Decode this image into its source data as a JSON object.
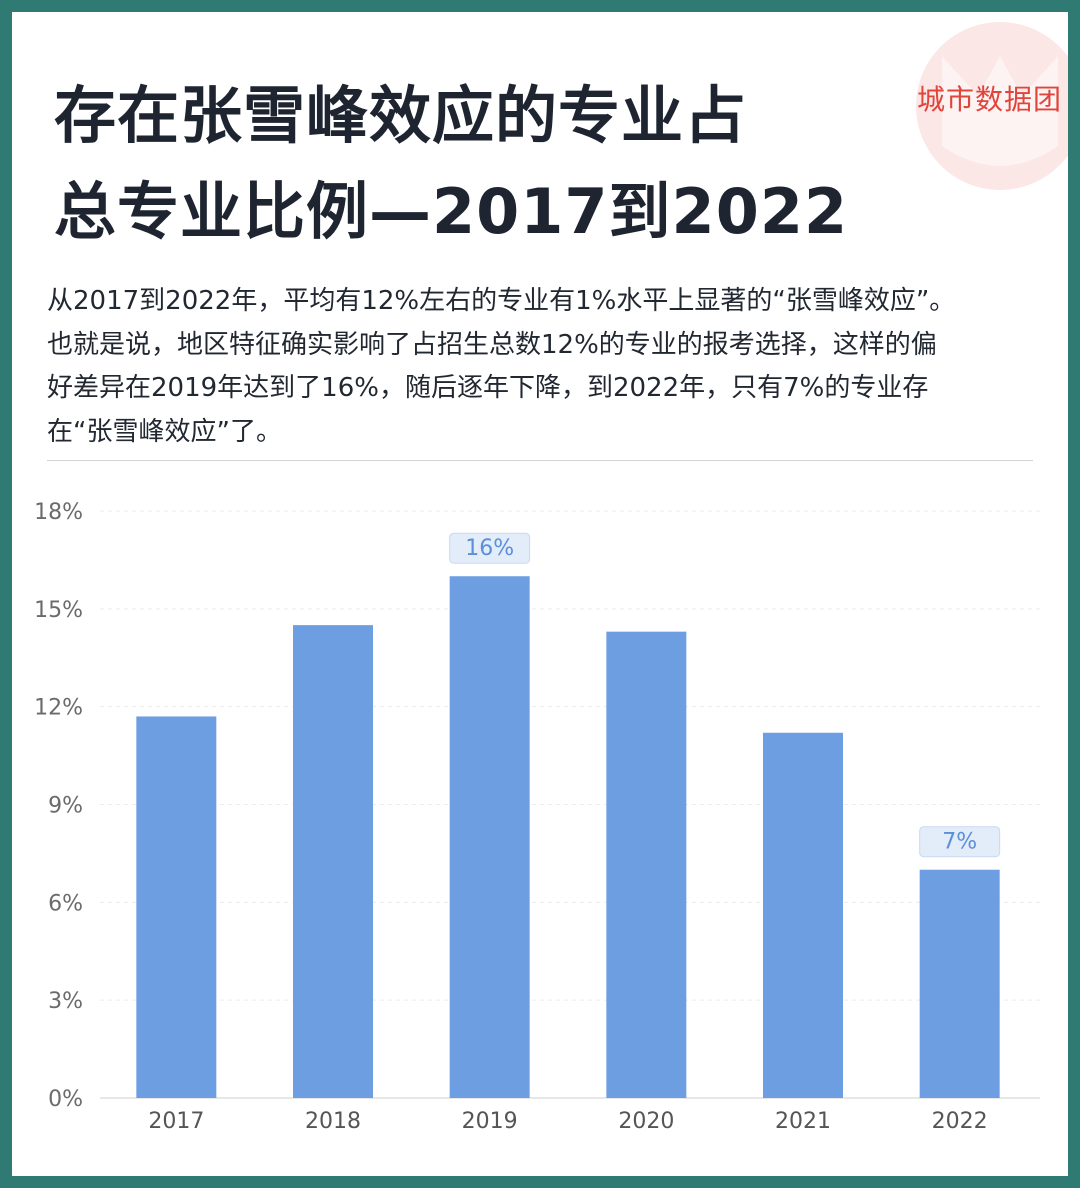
{
  "brand": {
    "name": "城市数据团"
  },
  "title_lines": [
    "存在张雪峰效应的专业占",
    "总专业比例—2017到2022"
  ],
  "description_lines": [
    "从2017到2022年，平均有12%左右的专业有1%水平上显著的“张雪峰效应”。",
    "也就是说，地区特征确实影响了占招生总数12%的专业的报考选择，这样的偏",
    "好差异在2019年达到了16%，随后逐年下降，到2022年，只有7%的专业存",
    "在“张雪峰效应”了。"
  ],
  "colors": {
    "bar": "#6e9ee2",
    "label_bg": "#e3ecf9",
    "label_text": "#5b8fd8",
    "frame": "#2f7a72",
    "brand": "#e0453c"
  },
  "chart_data": {
    "type": "bar",
    "categories": [
      "2017",
      "2018",
      "2019",
      "2020",
      "2021",
      "2022"
    ],
    "values": [
      11.7,
      14.5,
      16,
      14.3,
      11.2,
      7
    ],
    "ylim": [
      0,
      18
    ],
    "yticks": [
      0,
      3,
      6,
      9,
      12,
      15,
      18
    ],
    "ytick_labels": [
      "0%",
      "3%",
      "6%",
      "9%",
      "12%",
      "15%",
      "18%"
    ],
    "data_labels": [
      {
        "index": 2,
        "text": "16%"
      },
      {
        "index": 5,
        "text": "7%"
      }
    ],
    "grid": true
  }
}
